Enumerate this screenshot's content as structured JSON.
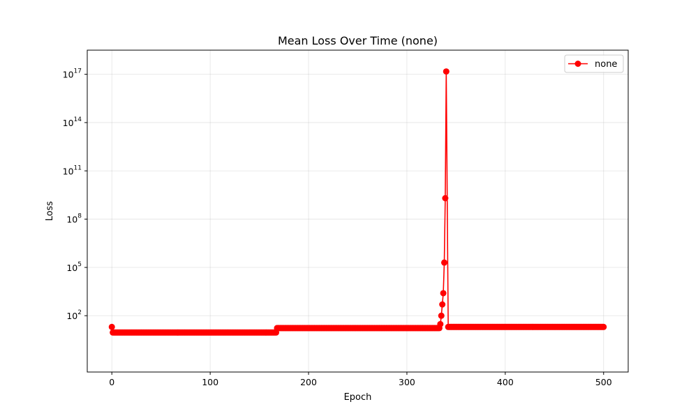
{
  "chart_data": {
    "type": "line",
    "title": "Mean Loss Over Time (none)",
    "xlabel": "Epoch",
    "ylabel": "Loss",
    "xlim": [
      -25,
      525
    ],
    "ylim_log10": [
      -1.5,
      18.5
    ],
    "yscale": "log",
    "x_ticks": [
      0,
      100,
      200,
      300,
      400,
      500
    ],
    "y_ticks_exponents": [
      2,
      5,
      8,
      11,
      14,
      17
    ],
    "grid": true,
    "legend_position": "top-right",
    "series": [
      {
        "name": "none",
        "color": "#ff0000",
        "marker": "circle",
        "segments": [
          {
            "x_start": 0,
            "x_end": 0,
            "value": 20
          },
          {
            "x_start": 1,
            "x_end": 167,
            "value": 9
          },
          {
            "x_start": 168,
            "x_end": 333,
            "value": 17
          },
          {
            "x_start": 342,
            "x_end": 500,
            "value": 20
          }
        ],
        "points": [
          {
            "x": 334,
            "y": 30
          },
          {
            "x": 335,
            "y": 100
          },
          {
            "x": 336,
            "y": 500
          },
          {
            "x": 337,
            "y": 2500
          },
          {
            "x": 338,
            "y": 200000
          },
          {
            "x": 339,
            "y": 2000000000
          },
          {
            "x": 340,
            "y": 150000000000000000
          }
        ]
      }
    ]
  },
  "legend": {
    "label": "none"
  }
}
